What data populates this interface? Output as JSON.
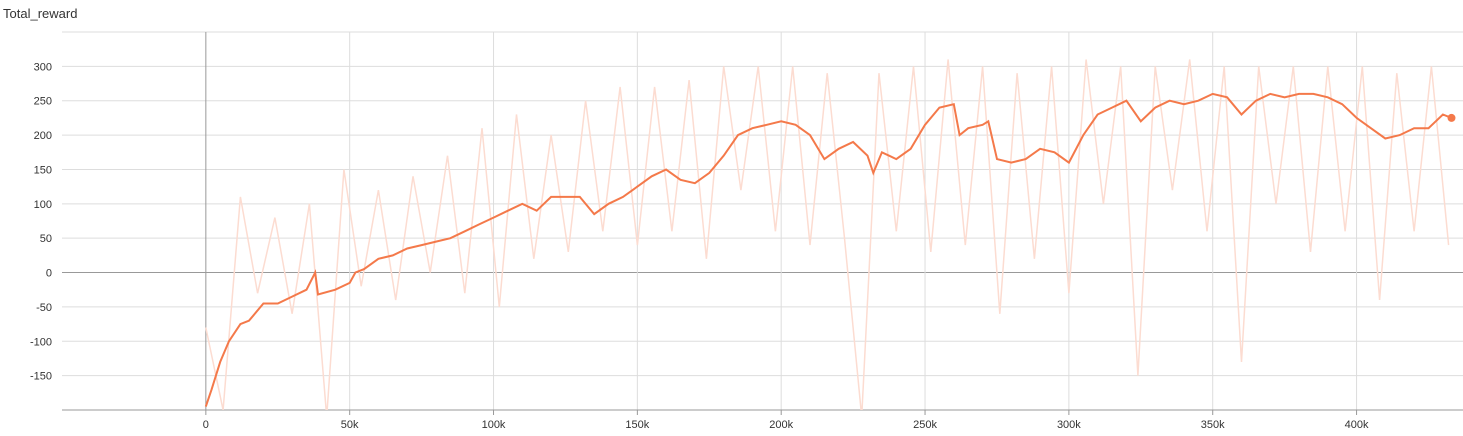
{
  "chart_data": {
    "type": "line",
    "title": "Total_reward",
    "xlim": [
      -50000,
      437000
    ],
    "ylim": [
      -200,
      350
    ],
    "xticks": [
      {
        "value": 0,
        "label": "0"
      },
      {
        "value": 50000,
        "label": "50k"
      },
      {
        "value": 100000,
        "label": "100k"
      },
      {
        "value": 150000,
        "label": "150k"
      },
      {
        "value": 200000,
        "label": "200k"
      },
      {
        "value": 250000,
        "label": "250k"
      },
      {
        "value": 300000,
        "label": "300k"
      },
      {
        "value": 350000,
        "label": "350k"
      },
      {
        "value": 400000,
        "label": "400k"
      }
    ],
    "yticks": [
      -150,
      -100,
      -50,
      0,
      50,
      100,
      150,
      200,
      250,
      300
    ],
    "grid": true,
    "series": [
      {
        "color": "#fcdcd1",
        "x": [
          0,
          6000,
          12000,
          18000,
          24000,
          30000,
          36000,
          42000,
          48000,
          54000,
          60000,
          66000,
          72000,
          78000,
          84000,
          90000,
          96000,
          102000,
          108000,
          114000,
          120000,
          126000,
          132000,
          138000,
          144000,
          150000,
          156000,
          162000,
          168000,
          174000,
          180000,
          186000,
          192000,
          198000,
          204000,
          210000,
          216000,
          222000,
          228000,
          234000,
          240000,
          246000,
          252000,
          258000,
          264000,
          270000,
          276000,
          282000,
          288000,
          294000,
          300000,
          306000,
          312000,
          318000,
          324000,
          330000,
          336000,
          342000,
          348000,
          354000,
          360000,
          366000,
          372000,
          378000,
          384000,
          390000,
          396000,
          402000,
          408000,
          414000,
          420000,
          426000,
          432000
        ],
        "values": [
          -80,
          -200,
          110,
          -30,
          80,
          -60,
          100,
          -210,
          150,
          -20,
          120,
          -40,
          140,
          0,
          170,
          -30,
          210,
          -50,
          230,
          20,
          200,
          30,
          250,
          60,
          270,
          40,
          270,
          60,
          280,
          20,
          300,
          120,
          300,
          60,
          300,
          40,
          290,
          50,
          -210,
          290,
          60,
          300,
          30,
          310,
          40,
          300,
          -60,
          290,
          20,
          300,
          -30,
          310,
          100,
          300,
          -150,
          300,
          120,
          310,
          60,
          300,
          -130,
          300,
          100,
          300,
          30,
          300,
          60,
          300,
          -40,
          290,
          60,
          300,
          40
        ]
      },
      {
        "color": "#f4794a",
        "x": [
          0,
          2000,
          5000,
          8000,
          12000,
          15000,
          20000,
          25000,
          30000,
          35000,
          38000,
          39000,
          45000,
          50000,
          52000,
          55000,
          60000,
          65000,
          70000,
          75000,
          80000,
          85000,
          90000,
          95000,
          100000,
          105000,
          110000,
          115000,
          120000,
          125000,
          130000,
          135000,
          140000,
          145000,
          150000,
          155000,
          160000,
          165000,
          170000,
          175000,
          180000,
          185000,
          190000,
          195000,
          200000,
          205000,
          210000,
          215000,
          220000,
          225000,
          230000,
          232000,
          235000,
          240000,
          245000,
          250000,
          255000,
          260000,
          262000,
          265000,
          270000,
          272000,
          275000,
          280000,
          285000,
          290000,
          295000,
          300000,
          305000,
          310000,
          315000,
          320000,
          325000,
          330000,
          335000,
          340000,
          345000,
          350000,
          355000,
          360000,
          365000,
          370000,
          375000,
          380000,
          385000,
          390000,
          395000,
          400000,
          405000,
          410000,
          415000,
          420000,
          425000,
          430000,
          433000
        ],
        "values": [
          -195,
          -170,
          -130,
          -100,
          -75,
          -70,
          -45,
          -45,
          -35,
          -25,
          0,
          -32,
          -25,
          -15,
          0,
          5,
          20,
          25,
          35,
          40,
          45,
          50,
          60,
          70,
          80,
          90,
          100,
          90,
          110,
          110,
          110,
          85,
          100,
          110,
          125,
          140,
          150,
          135,
          130,
          145,
          170,
          200,
          210,
          215,
          220,
          215,
          200,
          165,
          180,
          190,
          170,
          145,
          175,
          165,
          180,
          215,
          240,
          245,
          200,
          210,
          215,
          220,
          165,
          160,
          165,
          180,
          175,
          160,
          200,
          230,
          240,
          250,
          220,
          240,
          250,
          245,
          250,
          260,
          255,
          230,
          250,
          260,
          255,
          260,
          260,
          255,
          245,
          225,
          210,
          195,
          200,
          210,
          210,
          230,
          225
        ]
      }
    ]
  }
}
